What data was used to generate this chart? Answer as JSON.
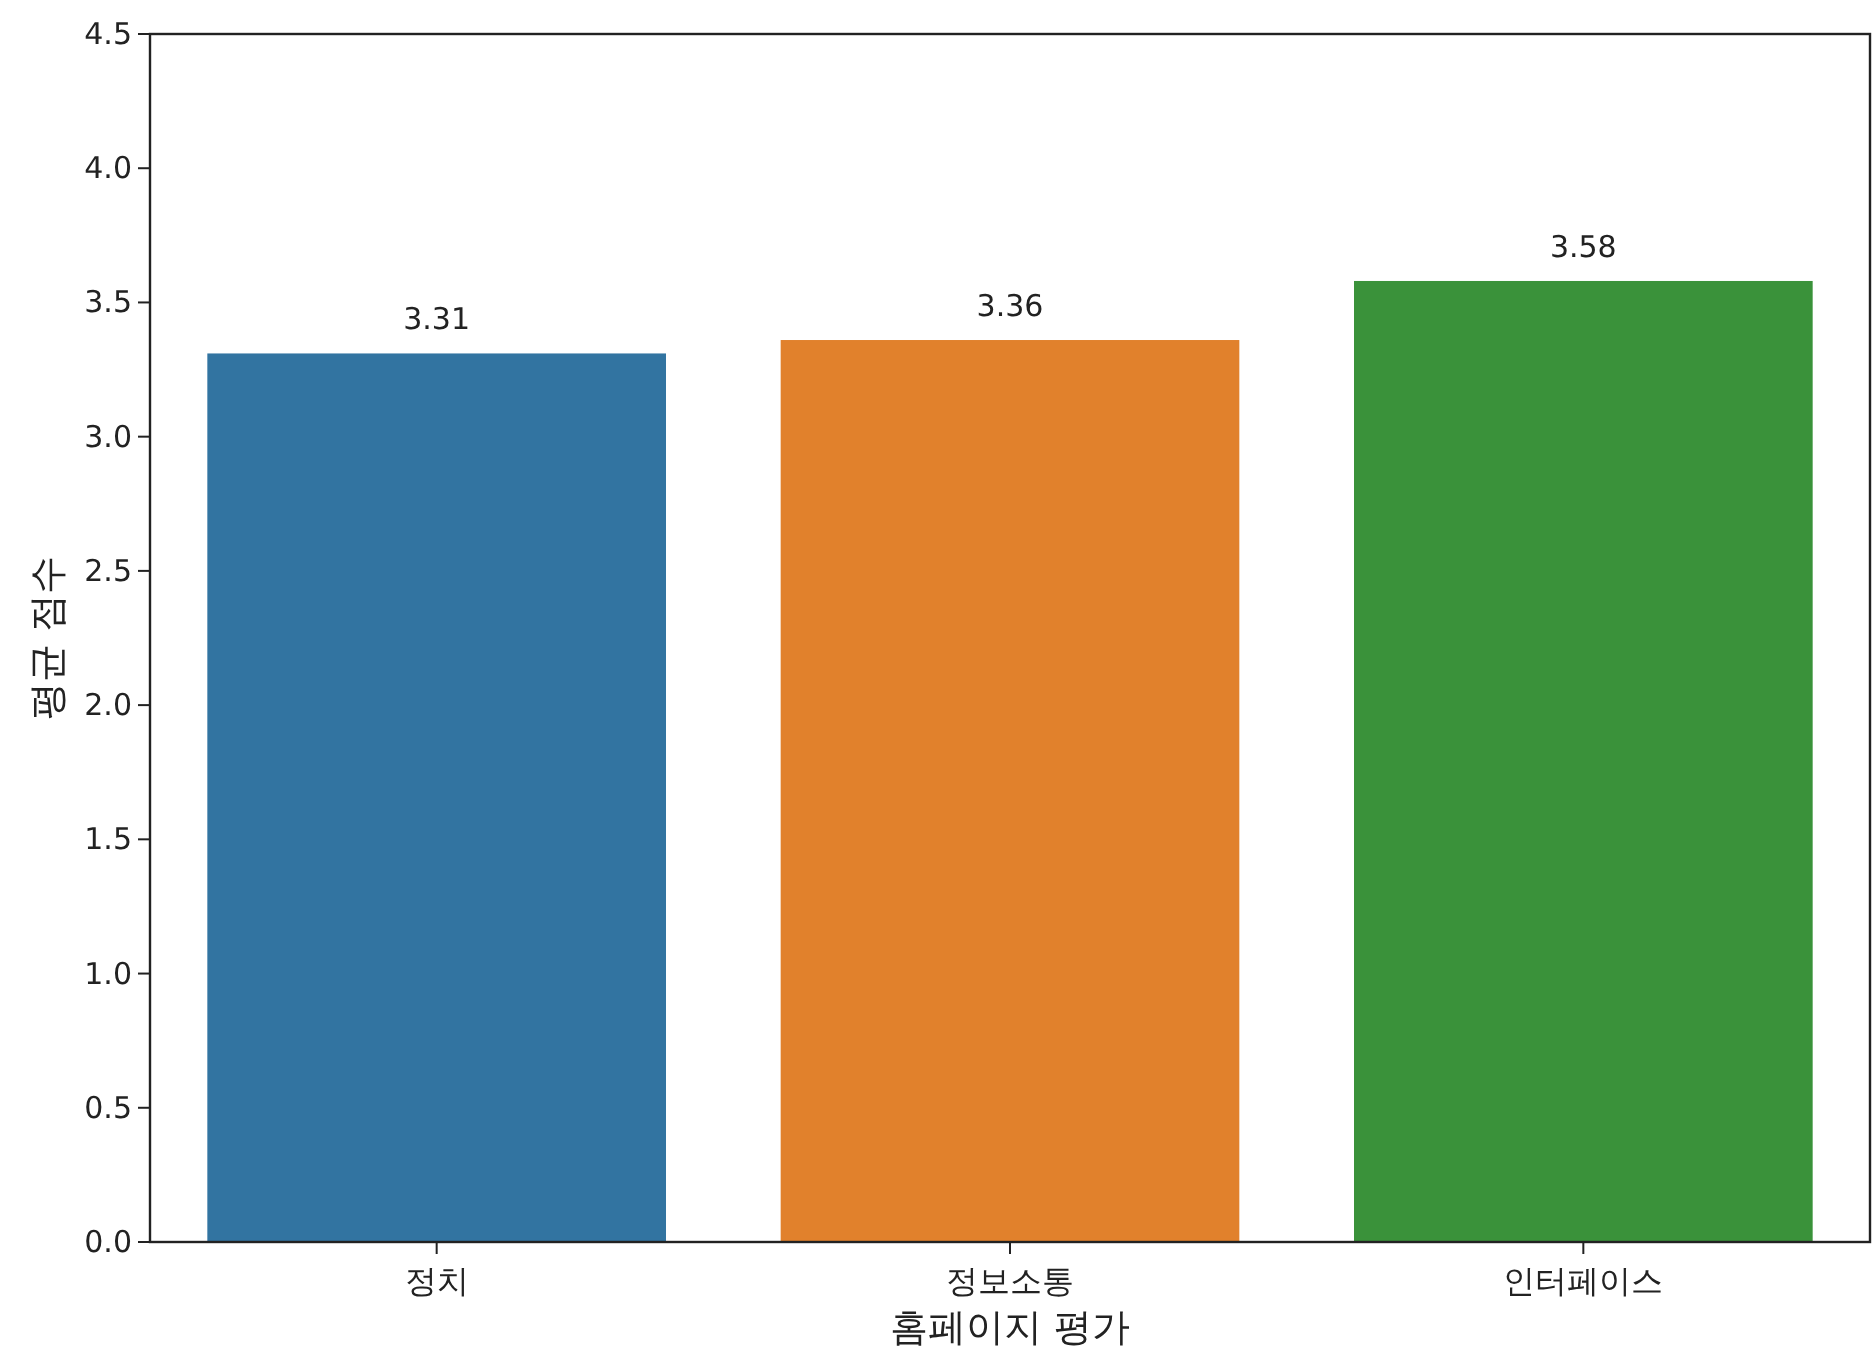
{
  "chart_data": {
    "type": "bar",
    "xlabel": "홈페이지 평가",
    "ylabel": "평균 점수",
    "categories": [
      "정치",
      "정보소통",
      "인터페이스"
    ],
    "values": [
      3.31,
      3.36,
      3.58
    ],
    "colors": [
      "#3274a1",
      "#e1812c",
      "#3a923a"
    ],
    "data_labels": true,
    "ylim": [
      0,
      4.5
    ],
    "yticks": [
      {
        "value": 0,
        "label": "0.0"
      },
      {
        "value": 0.5,
        "label": "0.5"
      },
      {
        "value": 1,
        "label": "1.0"
      },
      {
        "value": 1.5,
        "label": "1.5"
      },
      {
        "value": 2,
        "label": "2.0"
      },
      {
        "value": 2.5,
        "label": "2.5"
      },
      {
        "value": 3,
        "label": "3.0"
      },
      {
        "value": 3.5,
        "label": "3.5"
      },
      {
        "value": 4,
        "label": "4.0"
      },
      {
        "value": 4.5,
        "label": "4.5"
      }
    ]
  }
}
